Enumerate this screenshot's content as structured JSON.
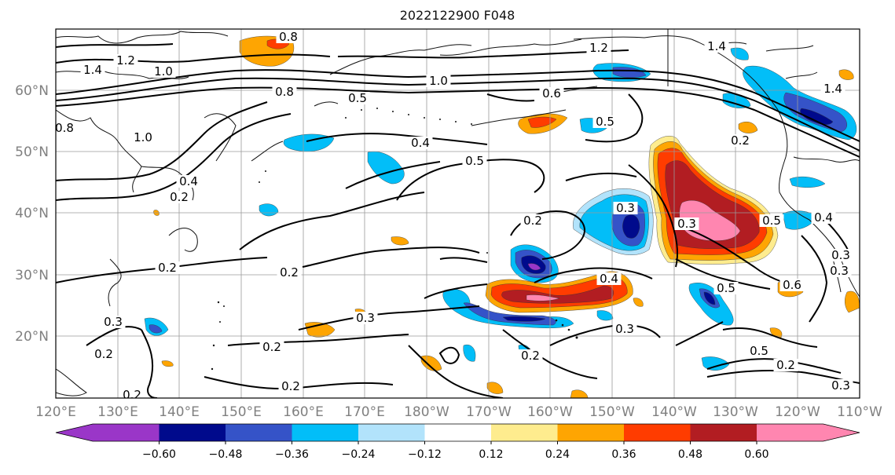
{
  "title": "2022122900 F048",
  "lat_labels": [
    "60°N",
    "50°N",
    "40°N",
    "30°N",
    "20°N"
  ],
  "lon_labels": [
    "120°E",
    "130°E",
    "140°E",
    "150°E",
    "160°E",
    "170°E",
    "180°W",
    "170°W",
    "160°W",
    "150°W",
    "140°W",
    "130°W",
    "120°W",
    "110°W"
  ],
  "colorbar": {
    "colors": [
      "#9a36c8",
      "#000a8c",
      "#3553c8",
      "#02bef8",
      "#b2e3fb",
      "#ffffff",
      "#feec8e",
      "#fea502",
      "#ff3c00",
      "#b21d22",
      "#ff86b0"
    ],
    "tick_labels": [
      "−0.60",
      "−0.48",
      "−0.36",
      "−0.24",
      "−0.12",
      "0.12",
      "0.24",
      "0.36",
      "0.48",
      "0.60"
    ]
  },
  "contour_labels": [
    "1.4",
    "1.2",
    "1.0",
    "0.8",
    "1.4",
    "1.2",
    "1.0",
    "0.8",
    "0.5",
    "1.0",
    "0.6",
    "0.5",
    "0.4",
    "0.5",
    "0.2",
    "0.3",
    "0.3",
    "0.4",
    "0.2",
    "0.2",
    "0.3",
    "0.3",
    "0.2",
    "0.2",
    "0.3",
    "0.5",
    "0.6",
    "0.2",
    "0.2",
    "0.5",
    "0.2",
    "0.3",
    "0.8",
    "0.4",
    "0.2",
    "0.4",
    "0.3",
    "1.4",
    "0.5",
    "0.3",
    "0.2",
    "0.2"
  ]
}
